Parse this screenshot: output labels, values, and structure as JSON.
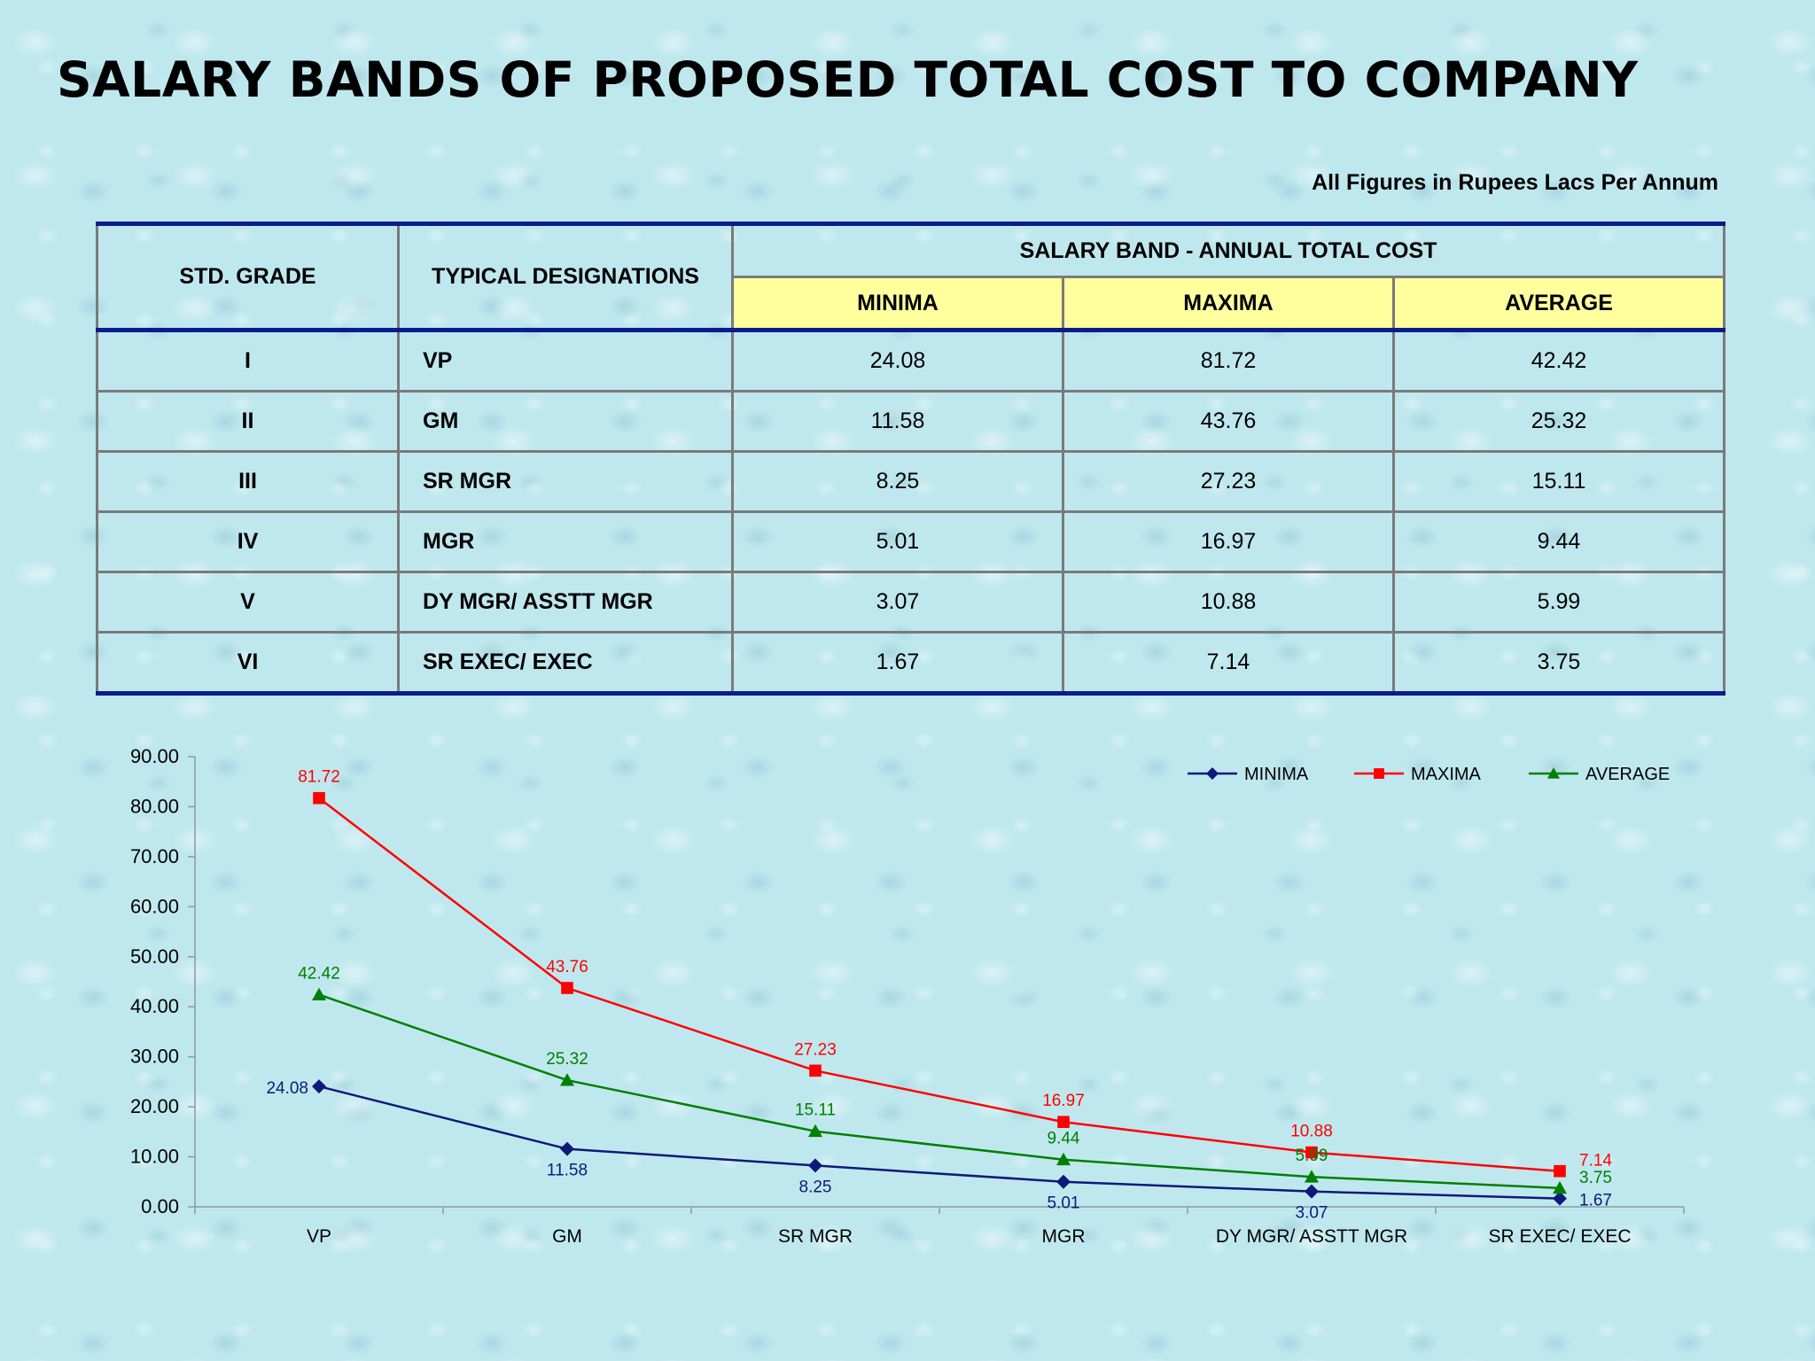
{
  "page": {
    "title": "SALARY BANDS OF PROPOSED TOTAL COST TO COMPANY",
    "units_note": "All Figures in Rupees Lacs Per Annum"
  },
  "table": {
    "headers": {
      "grade": "STD. GRADE",
      "designation": "TYPICAL DESIGNATIONS",
      "band": "SALARY BAND - ANNUAL TOTAL COST",
      "minima": "MINIMA",
      "maxima": "MAXIMA",
      "average": "AVERAGE"
    },
    "rows": [
      {
        "grade": "I",
        "designation": "VP",
        "minima": "24.08",
        "maxima": "81.72",
        "average": "42.42"
      },
      {
        "grade": "II",
        "designation": "GM",
        "minima": "11.58",
        "maxima": "43.76",
        "average": "25.32"
      },
      {
        "grade": "III",
        "designation": "SR MGR",
        "minima": "8.25",
        "maxima": "27.23",
        "average": "15.11"
      },
      {
        "grade": "IV",
        "designation": "MGR",
        "minima": "5.01",
        "maxima": "16.97",
        "average": "9.44"
      },
      {
        "grade": "V",
        "designation": "DY MGR/ ASSTT MGR",
        "minima": "3.07",
        "maxima": "10.88",
        "average": "5.99"
      },
      {
        "grade": "VI",
        "designation": "SR EXEC/ EXEC",
        "minima": "1.67",
        "maxima": "7.14",
        "average": "3.75"
      }
    ]
  },
  "chart_data": {
    "type": "line",
    "categories": [
      "VP",
      "GM",
      "SR MGR",
      "MGR",
      "DY MGR/ ASSTT MGR",
      "SR EXEC/ EXEC"
    ],
    "series": [
      {
        "name": "MINIMA",
        "color": "#10187a",
        "marker": "diamond",
        "values": [
          24.08,
          11.58,
          8.25,
          5.01,
          3.07,
          1.67
        ]
      },
      {
        "name": "MAXIMA",
        "color": "#ff0000",
        "marker": "square",
        "values": [
          81.72,
          43.76,
          27.23,
          16.97,
          10.88,
          7.14
        ]
      },
      {
        "name": "AVERAGE",
        "color": "#008000",
        "marker": "triangle",
        "values": [
          42.42,
          25.32,
          15.11,
          9.44,
          5.99,
          3.75
        ]
      }
    ],
    "ylim": [
      0,
      90
    ],
    "yticks": [
      "0.00",
      "10.00",
      "20.00",
      "30.00",
      "40.00",
      "50.00",
      "60.00",
      "70.00",
      "80.00",
      "90.00"
    ],
    "grid": false,
    "legend_position": "top-right",
    "data_labels": true,
    "xlabel": "",
    "ylabel": ""
  }
}
